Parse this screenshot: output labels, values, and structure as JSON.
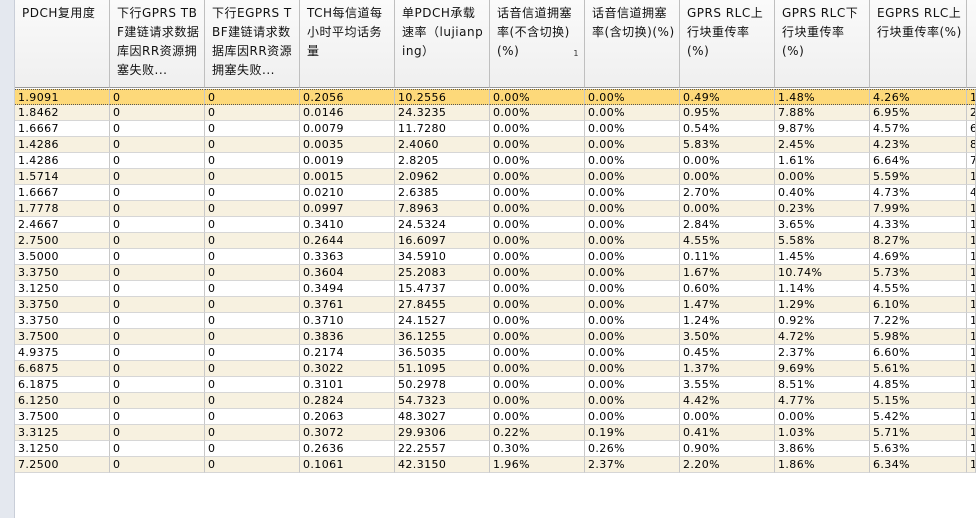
{
  "grid": {
    "columns": [
      {
        "key": "pdch",
        "label": "PDCH复用度",
        "width": 95
      },
      {
        "key": "gprs_tbf",
        "label": "下行GPRS TBF建链请求数据库因RR资源拥塞失败...",
        "width": 95
      },
      {
        "key": "egprs_tbf",
        "label": "下行EGPRS TBF建链请求数据库因RR资源拥塞失败...",
        "width": 95
      },
      {
        "key": "tch",
        "label": "TCH每信道每小时平均话务量",
        "width": 95
      },
      {
        "key": "rate",
        "label": "单PDCH承载速率（lujianping）",
        "width": 95
      },
      {
        "key": "cong_ex",
        "label": "话音信道拥塞率(不含切换)(%)",
        "width": 95,
        "sort_marker": "1"
      },
      {
        "key": "cong_in",
        "label": "话音信道拥塞率(含切换)(%)",
        "width": 95
      },
      {
        "key": "gprs_ul",
        "label": "GPRS RLC上行块重传率(%)",
        "width": 95
      },
      {
        "key": "gprs_dl",
        "label": "GPRS RLC下行块重传率(%)",
        "width": 95
      },
      {
        "key": "egprs_ul",
        "label": "EGPRS RLC上行块重传率(%)",
        "width": 97
      },
      {
        "key": "extra",
        "label": "",
        "width": 9
      }
    ],
    "selected_row": 0,
    "rows": [
      [
        "1.9091",
        "0",
        "0",
        "0.2056",
        "10.2556",
        "0.00%",
        "0.00%",
        "0.49%",
        "1.48%",
        "4.26%",
        "1"
      ],
      [
        "1.8462",
        "0",
        "0",
        "0.0146",
        "24.3235",
        "0.00%",
        "0.00%",
        "0.95%",
        "7.88%",
        "6.95%",
        "2"
      ],
      [
        "1.6667",
        "0",
        "0",
        "0.0079",
        "11.7280",
        "0.00%",
        "0.00%",
        "0.54%",
        "9.87%",
        "4.57%",
        "6"
      ],
      [
        "1.4286",
        "0",
        "0",
        "0.0035",
        "2.4060",
        "0.00%",
        "0.00%",
        "5.83%",
        "2.45%",
        "4.23%",
        "8"
      ],
      [
        "1.4286",
        "0",
        "0",
        "0.0019",
        "2.8205",
        "0.00%",
        "0.00%",
        "0.00%",
        "1.61%",
        "6.64%",
        "7"
      ],
      [
        "1.5714",
        "0",
        "0",
        "0.0015",
        "2.0962",
        "0.00%",
        "0.00%",
        "0.00%",
        "0.00%",
        "5.59%",
        "1"
      ],
      [
        "1.6667",
        "0",
        "0",
        "0.0210",
        "2.6385",
        "0.00%",
        "0.00%",
        "2.70%",
        "0.40%",
        "4.73%",
        "4"
      ],
      [
        "1.7778",
        "0",
        "0",
        "0.0997",
        "7.8963",
        "0.00%",
        "0.00%",
        "0.00%",
        "0.23%",
        "7.99%",
        "1"
      ],
      [
        "2.4667",
        "0",
        "0",
        "0.3410",
        "24.5324",
        "0.00%",
        "0.00%",
        "2.84%",
        "3.65%",
        "4.33%",
        "1"
      ],
      [
        "2.7500",
        "0",
        "0",
        "0.2644",
        "16.6097",
        "0.00%",
        "0.00%",
        "4.55%",
        "5.58%",
        "8.27%",
        "1"
      ],
      [
        "3.5000",
        "0",
        "0",
        "0.3363",
        "34.5910",
        "0.00%",
        "0.00%",
        "0.11%",
        "1.45%",
        "4.69%",
        "1"
      ],
      [
        "3.3750",
        "0",
        "0",
        "0.3604",
        "25.2083",
        "0.00%",
        "0.00%",
        "1.67%",
        "10.74%",
        "5.73%",
        "1"
      ],
      [
        "3.1250",
        "0",
        "0",
        "0.3494",
        "15.4737",
        "0.00%",
        "0.00%",
        "0.60%",
        "1.14%",
        "4.55%",
        "1"
      ],
      [
        "3.3750",
        "0",
        "0",
        "0.3761",
        "27.8455",
        "0.00%",
        "0.00%",
        "1.47%",
        "1.29%",
        "6.10%",
        "1"
      ],
      [
        "3.3750",
        "0",
        "0",
        "0.3710",
        "24.1527",
        "0.00%",
        "0.00%",
        "1.24%",
        "0.92%",
        "7.22%",
        "1"
      ],
      [
        "3.7500",
        "0",
        "0",
        "0.3836",
        "36.1255",
        "0.00%",
        "0.00%",
        "3.50%",
        "4.72%",
        "5.98%",
        "1"
      ],
      [
        "4.9375",
        "0",
        "0",
        "0.2174",
        "36.5035",
        "0.00%",
        "0.00%",
        "0.45%",
        "2.37%",
        "6.60%",
        "1"
      ],
      [
        "6.6875",
        "0",
        "0",
        "0.3022",
        "51.1095",
        "0.00%",
        "0.00%",
        "1.37%",
        "9.69%",
        "5.61%",
        "1"
      ],
      [
        "6.1875",
        "0",
        "0",
        "0.3101",
        "50.2978",
        "0.00%",
        "0.00%",
        "3.55%",
        "8.51%",
        "4.85%",
        "1"
      ],
      [
        "6.1250",
        "0",
        "0",
        "0.2824",
        "54.7323",
        "0.00%",
        "0.00%",
        "4.42%",
        "4.77%",
        "5.15%",
        "1"
      ],
      [
        "3.7500",
        "0",
        "0",
        "0.2063",
        "48.3027",
        "0.00%",
        "0.00%",
        "0.00%",
        "0.00%",
        "5.42%",
        "1"
      ],
      [
        "3.3125",
        "0",
        "0",
        "0.3072",
        "29.9306",
        "0.22%",
        "0.19%",
        "0.41%",
        "1.03%",
        "5.71%",
        "1"
      ],
      [
        "3.1250",
        "0",
        "0",
        "0.2636",
        "22.2557",
        "0.30%",
        "0.26%",
        "0.90%",
        "3.86%",
        "5.63%",
        "1"
      ],
      [
        "7.2500",
        "0",
        "0",
        "0.1061",
        "42.3150",
        "1.96%",
        "2.37%",
        "2.20%",
        "1.86%",
        "6.34%",
        "1"
      ]
    ]
  },
  "colors": {
    "selected_row": "#fdd97a",
    "alt_row": "#f7f1e0",
    "header_bg": "#f4f4f4"
  }
}
